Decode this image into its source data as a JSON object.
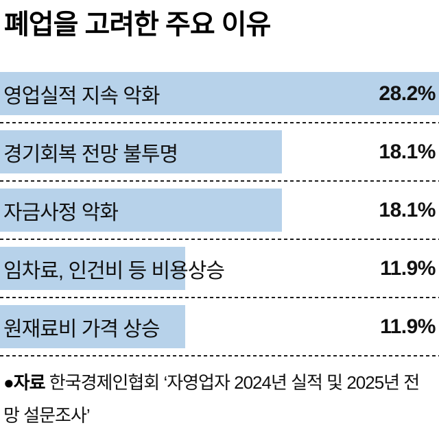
{
  "title": "폐업을 고려한 주요 이유",
  "source": {
    "label": "●자료",
    "text": "한국경제인협회 ‘자영업자 2024년 실적 및 2025년 전망 설문조사’"
  },
  "chart_data": {
    "type": "bar",
    "orientation": "horizontal",
    "title": "폐업을 고려한 주요 이유",
    "categories": [
      "영업실적 지속 악화",
      "경기회복 전망 불투명",
      "자금사정 악화",
      "임차료, 인건비 등 비용상승",
      "원재료비 가격 상승"
    ],
    "values": [
      28.2,
      18.1,
      18.1,
      11.9,
      11.9
    ],
    "value_labels": [
      "28.2%",
      "18.1%",
      "18.1%",
      "11.9%",
      "11.9%"
    ],
    "unit": "%",
    "xlim": [
      0,
      28.2
    ],
    "bar_color": "#b7d2ea",
    "grid": false,
    "legend": false,
    "separator_style": "dashed"
  }
}
